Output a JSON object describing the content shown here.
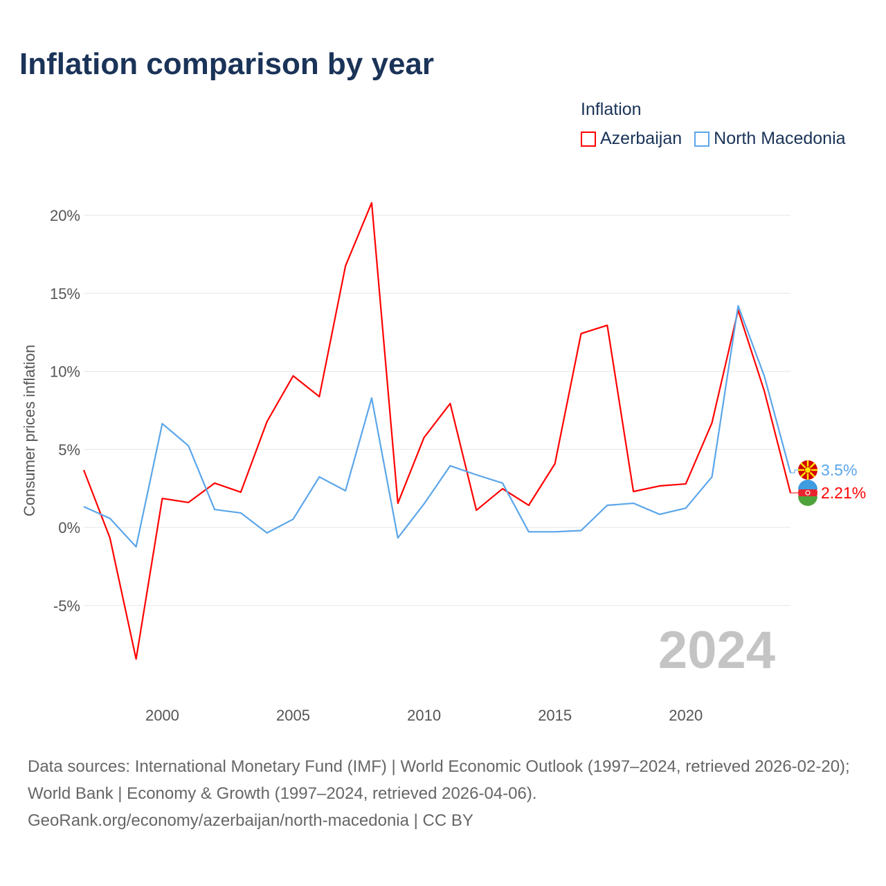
{
  "title": "Inflation comparison by year",
  "legend": {
    "title": "Inflation",
    "items": [
      {
        "label": "Azerbaijan",
        "color": "#ff0000"
      },
      {
        "label": "North Macedonia",
        "color": "#5aa5ea"
      }
    ]
  },
  "source": {
    "line1": "Data sources: International Monetary Fund (IMF) | World Economic Outlook (1997–2024, retrieved 2026-02-20); World Bank | Economy & Growth (1997–2024, retrieved 2026-04-06).",
    "line2": "GeoRank.org/economy/azerbaijan/north-macedonia | CC BY"
  },
  "chart_data": {
    "type": "line",
    "title": "Inflation comparison by year",
    "ylabel": "Consumer prices inflation",
    "xlabel": "",
    "year_watermark": "2024",
    "x": [
      1997,
      1998,
      1999,
      2000,
      2001,
      2002,
      2003,
      2004,
      2005,
      2006,
      2007,
      2008,
      2009,
      2010,
      2011,
      2012,
      2013,
      2014,
      2015,
      2016,
      2017,
      2018,
      2019,
      2020,
      2021,
      2022,
      2023,
      2024
    ],
    "xlim": [
      1997,
      2024
    ],
    "ylim": [
      -9.5,
      22
    ],
    "xticks": [
      2000,
      2005,
      2010,
      2015,
      2020
    ],
    "yticks": [
      -5,
      0,
      5,
      10,
      15,
      20
    ],
    "ytick_labels": [
      "-5%",
      "0%",
      "5%",
      "10%",
      "15%",
      "20%"
    ],
    "grid": true,
    "series": [
      {
        "name": "Azerbaijan",
        "color": "#ff0000",
        "end_label": "2.21%",
        "values": [
          3.68,
          -0.67,
          -8.43,
          1.86,
          1.6,
          2.84,
          2.26,
          6.78,
          9.71,
          8.38,
          16.76,
          20.8,
          1.55,
          5.76,
          7.94,
          1.1,
          2.48,
          1.42,
          4.08,
          12.42,
          12.95,
          2.3,
          2.66,
          2.79,
          6.7,
          13.92,
          8.74,
          2.21
        ]
      },
      {
        "name": "North Macedonia",
        "color": "#5aa5ea",
        "end_label": "3.5%",
        "values": [
          1.33,
          0.58,
          -1.24,
          6.65,
          5.23,
          1.15,
          0.93,
          -0.35,
          0.53,
          3.24,
          2.35,
          8.29,
          -0.67,
          1.51,
          3.95,
          3.37,
          2.84,
          -0.28,
          -0.28,
          -0.2,
          1.42,
          1.55,
          0.84,
          1.24,
          3.24,
          14.2,
          9.7,
          3.5
        ]
      }
    ]
  }
}
